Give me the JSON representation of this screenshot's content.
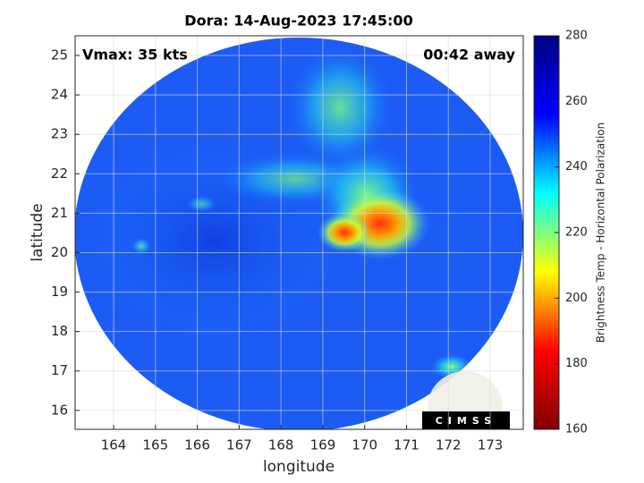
{
  "chart_data": {
    "type": "image",
    "title": "Dora: 14-Aug-2023 17:45:00",
    "xlabel": "longitude",
    "ylabel": "latitude",
    "xlim": [
      163.08,
      173.79
    ],
    "ylim": [
      15.52,
      25.5
    ],
    "xticks": [
      164,
      165,
      166,
      167,
      168,
      169,
      170,
      171,
      172,
      173
    ],
    "yticks": [
      16,
      17,
      18,
      19,
      20,
      21,
      22,
      23,
      24,
      25
    ],
    "grid": true,
    "annotations": [
      "Vmax: 35 kts",
      "00:42 away"
    ],
    "logo_text": "CIMSS",
    "colorbar": {
      "label": "Brightness Temp - Horizontal Polarization",
      "colormap": "jet",
      "lim": [
        160,
        280
      ],
      "ticks": [
        160,
        180,
        200,
        220,
        240,
        260,
        280
      ]
    }
  }
}
